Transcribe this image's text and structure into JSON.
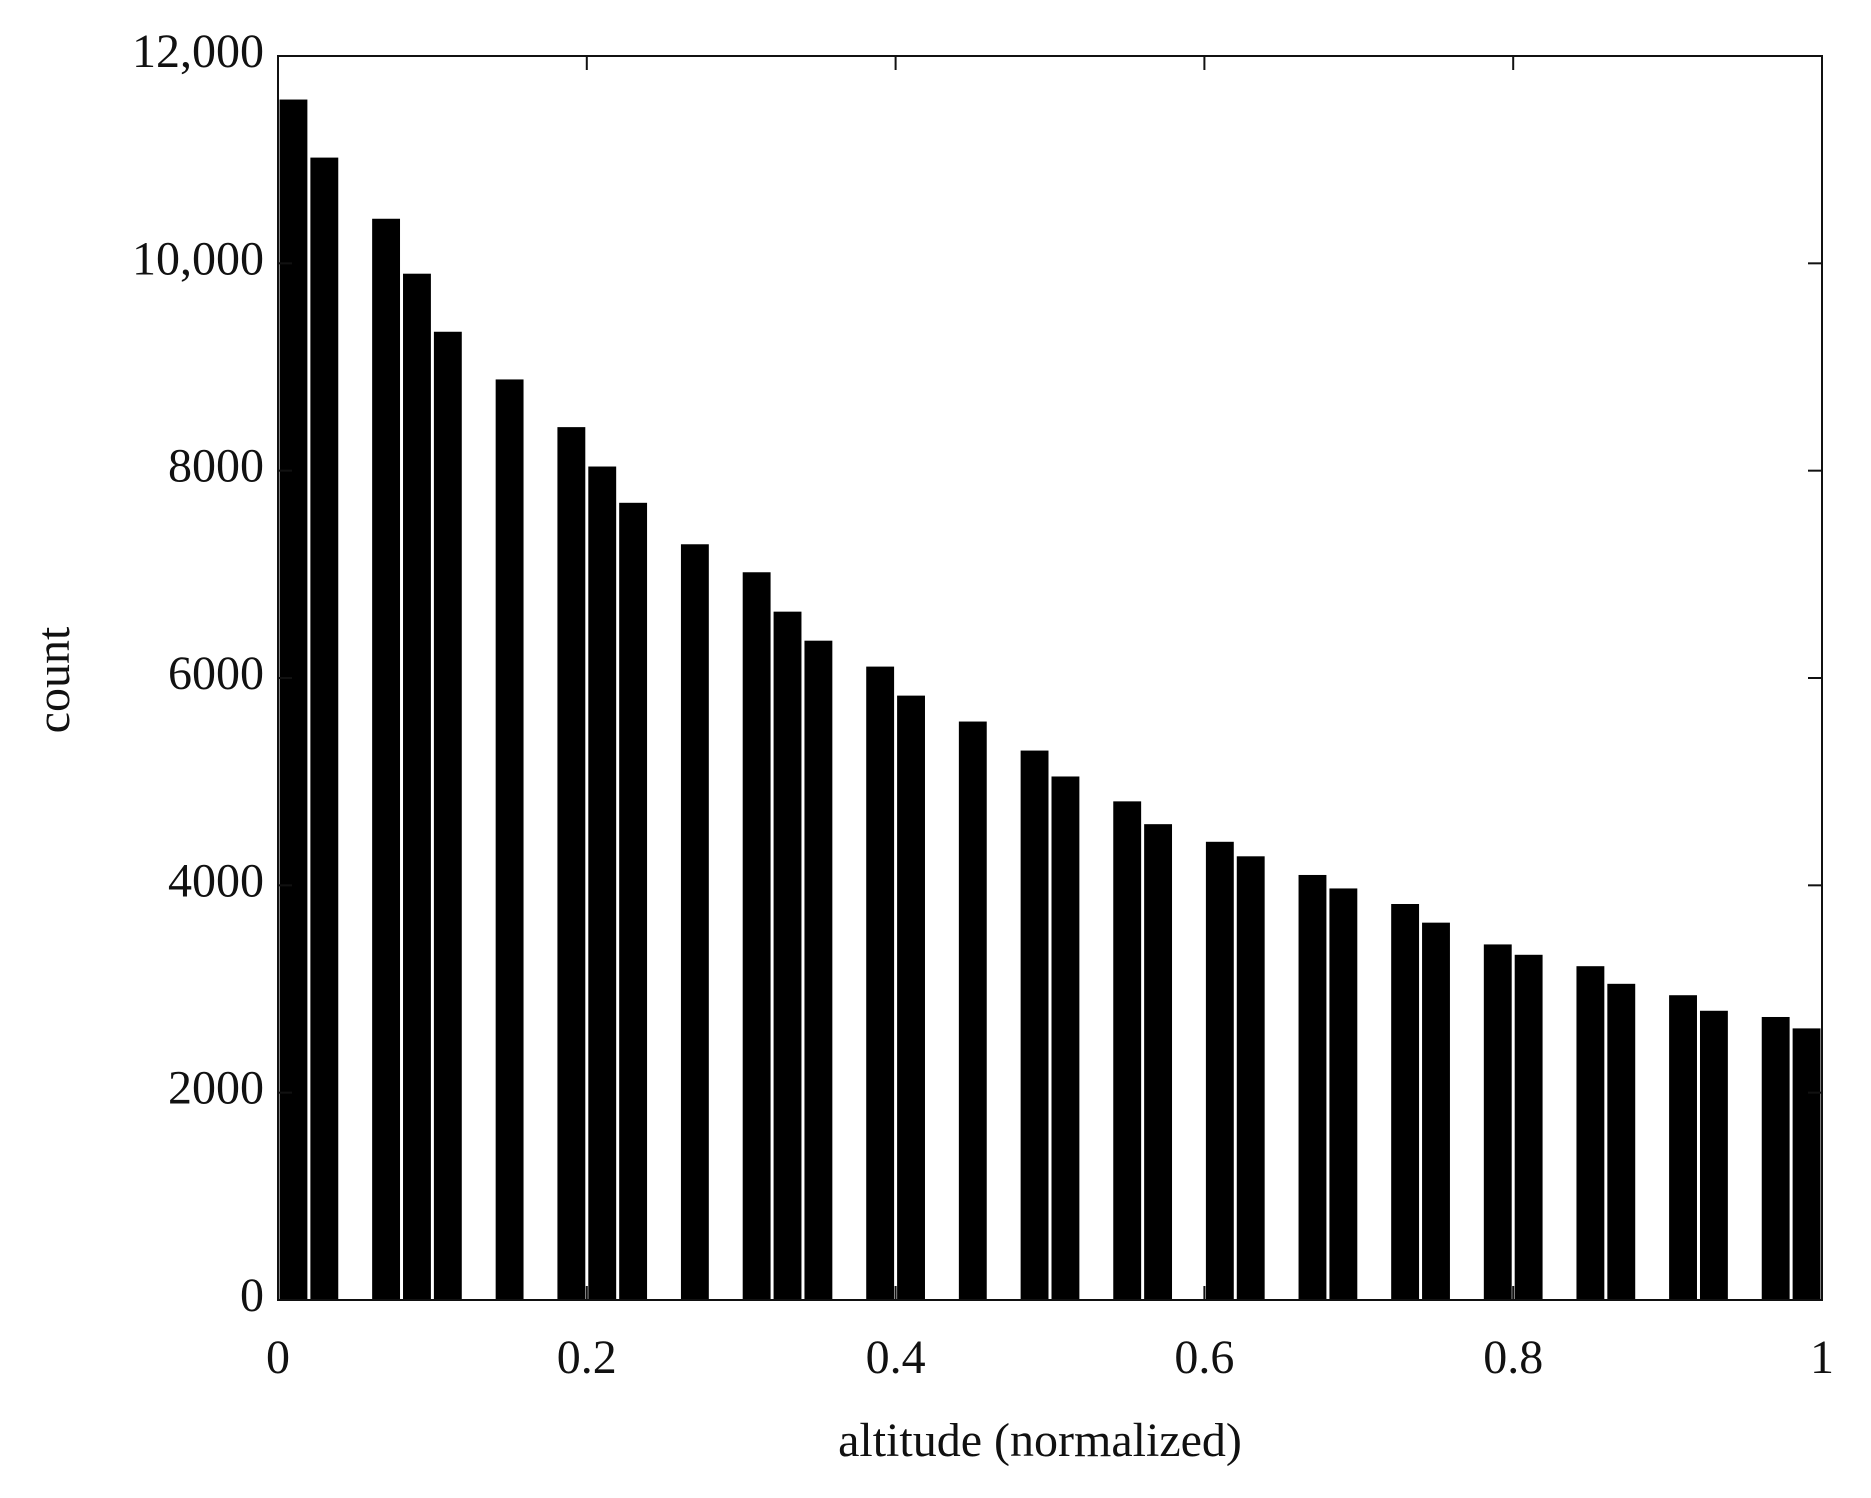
{
  "chart_data": {
    "type": "histogram",
    "x_label": "altitude (normalized)",
    "y_label": "count",
    "bins": [
      0,
      0.02,
      0.04,
      0.06,
      0.08,
      0.1,
      0.12,
      0.14,
      0.16,
      0.18,
      0.2,
      0.22,
      0.24,
      0.26,
      0.28,
      0.3,
      0.32,
      0.34,
      0.36,
      0.38,
      0.4,
      0.42,
      0.44,
      0.46,
      0.48,
      0.5,
      0.52,
      0.54,
      0.56,
      0.58,
      0.6,
      0.62,
      0.64,
      0.66,
      0.68,
      0.7,
      0.72,
      0.74,
      0.76,
      0.78,
      0.8,
      0.82,
      0.84,
      0.86,
      0.88,
      0.9,
      0.92,
      0.94,
      0.96,
      0.98,
      1
    ],
    "values": [
      11580,
      11020,
      0,
      10430,
      9900,
      9340,
      0,
      8880,
      0,
      8420,
      8040,
      7690,
      0,
      7290,
      0,
      7020,
      6640,
      6360,
      0,
      6110,
      5830,
      0,
      5580,
      0,
      5300,
      5050,
      0,
      4810,
      4590,
      0,
      4420,
      4280,
      0,
      4100,
      3970,
      0,
      3820,
      3640,
      0,
      3430,
      3330,
      0,
      3220,
      3050,
      0,
      2940,
      2790,
      0,
      2730,
      2620
    ],
    "color": "#000000",
    "xlim": [
      0,
      1
    ],
    "xticks": [
      0,
      0.2,
      0.4,
      0.6,
      0.8,
      1
    ],
    "ylim": [
      0,
      12000
    ],
    "yticks": [
      0,
      2000,
      4000,
      6000,
      8000,
      {
        "value": 10000,
        "label": "10,000"
      },
      {
        "value": 12000,
        "label": "12,000"
      }
    ],
    "grid": false
  }
}
